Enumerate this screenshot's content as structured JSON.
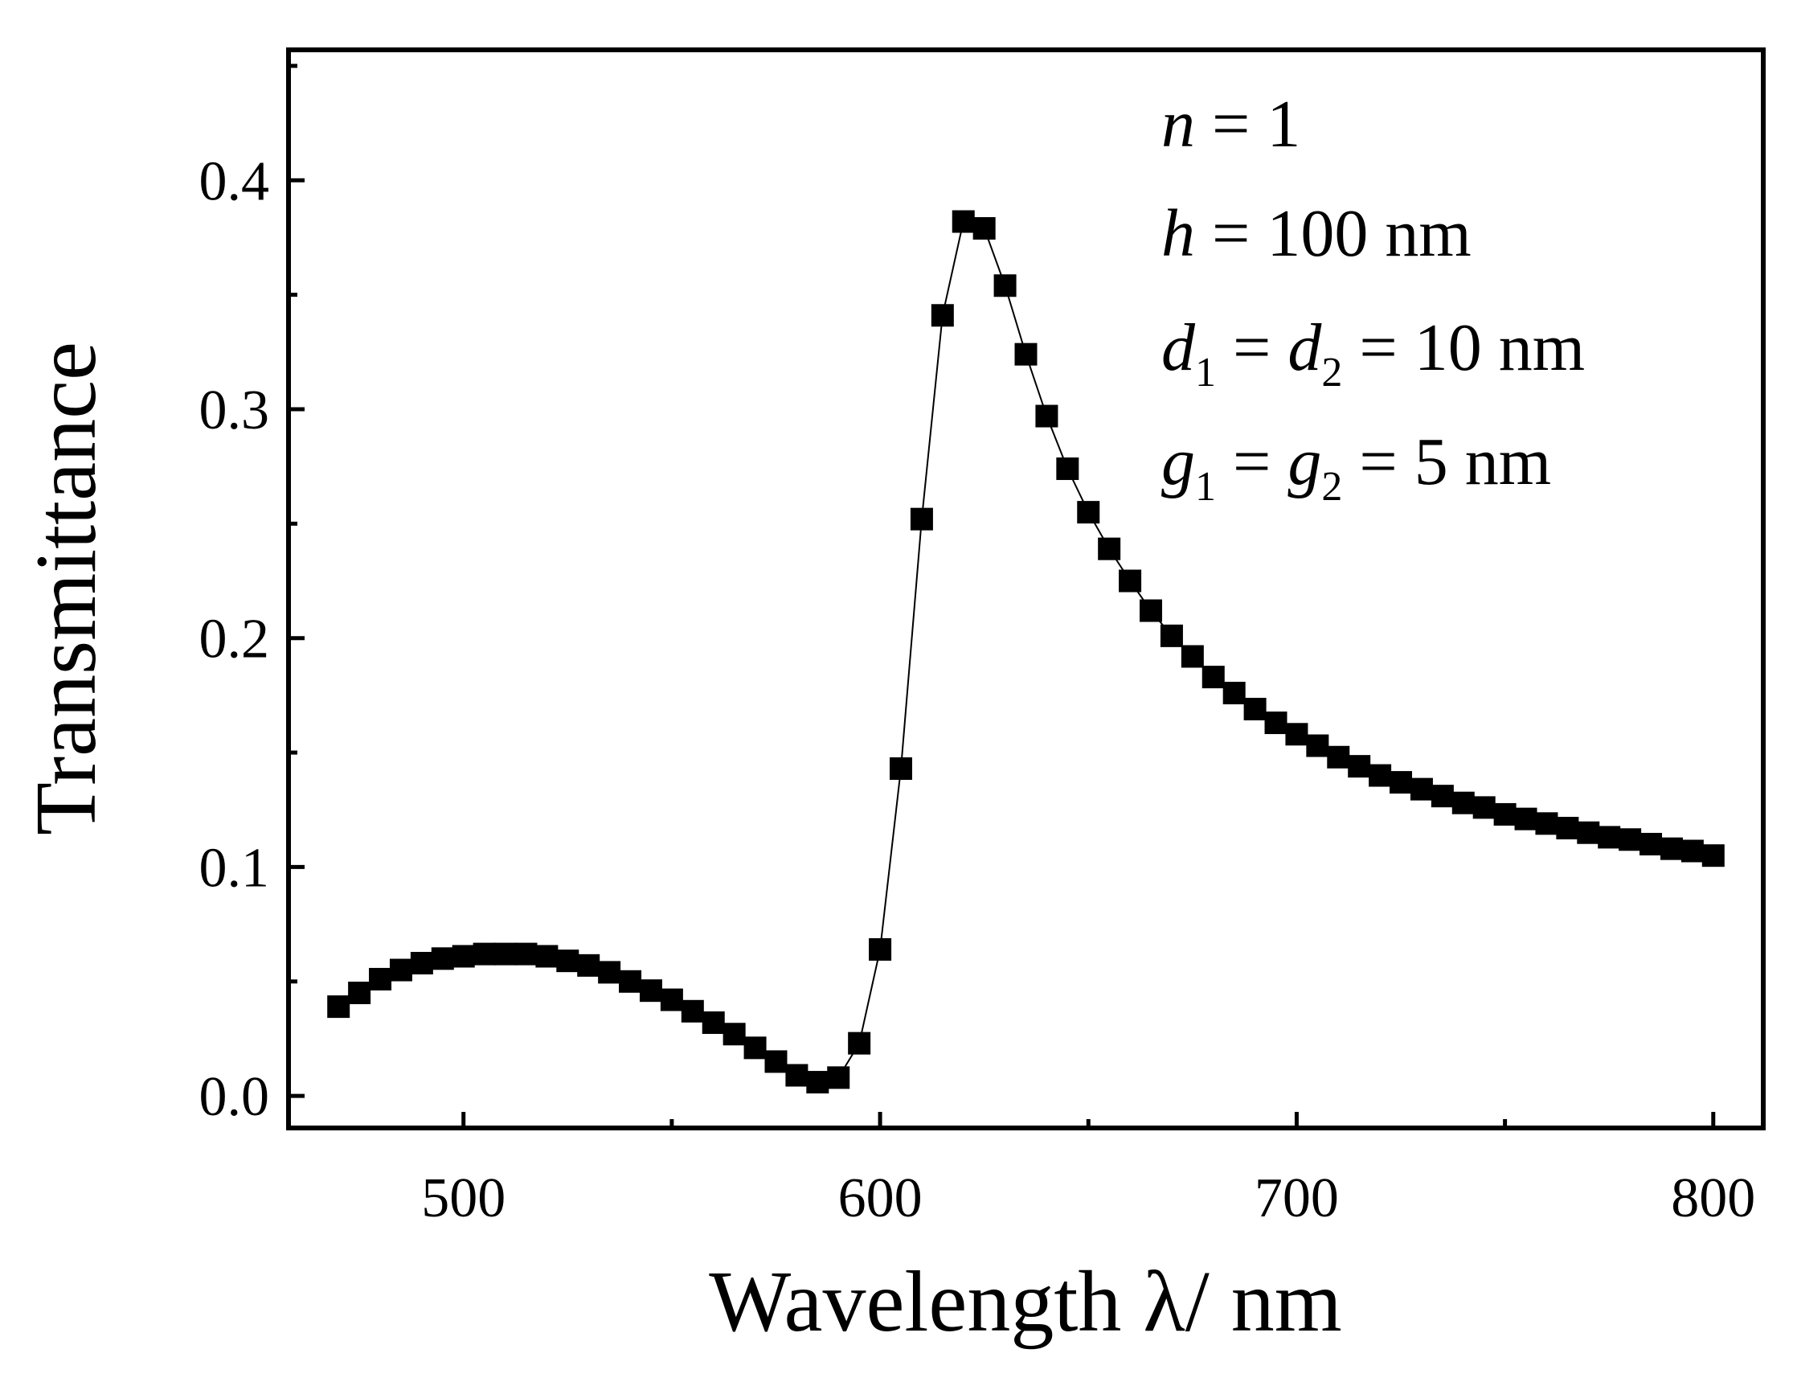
{
  "chart_data": {
    "type": "scatter",
    "title": "",
    "xlabel": "Wavelength λ/ nm",
    "ylabel": "Transmittance",
    "xlim": [
      458,
      812
    ],
    "ylim": [
      -0.014,
      0.457
    ],
    "xticks": [
      500,
      600,
      700,
      800
    ],
    "xtick_labels": [
      "500",
      "600",
      "700",
      "800"
    ],
    "yticks": [
      0.0,
      0.1,
      0.2,
      0.3,
      0.4
    ],
    "ytick_labels": [
      "0.0",
      "0.1",
      "0.2",
      "0.3",
      "0.4"
    ],
    "grid": false,
    "legend": "none",
    "annotations": [
      {
        "var": "n",
        "rest": " = 1"
      },
      {
        "var": "h",
        "rest": " = 100 nm"
      },
      {
        "var": "d",
        "sub": "1",
        "mid": " = ",
        "var2": "d",
        "sub2": "2",
        "rest": " = 10 nm"
      },
      {
        "var": "g",
        "sub": "1",
        "mid": " = ",
        "var2": "g",
        "sub2": "2",
        "rest": " = 5 nm"
      }
    ],
    "series": [
      {
        "name": "Transmittance",
        "marker": "square",
        "line": "thin",
        "x": [
          470,
          475,
          480,
          485,
          490,
          495,
          500,
          505,
          510,
          515,
          520,
          525,
          530,
          535,
          540,
          545,
          550,
          555,
          560,
          565,
          570,
          575,
          580,
          585,
          590,
          595,
          600,
          605,
          610,
          615,
          620,
          625,
          630,
          635,
          640,
          645,
          650,
          655,
          660,
          665,
          670,
          675,
          680,
          685,
          690,
          695,
          700,
          705,
          710,
          715,
          720,
          725,
          730,
          735,
          740,
          745,
          750,
          755,
          760,
          765,
          770,
          775,
          780,
          785,
          790,
          795,
          800
        ],
        "y": [
          0.039,
          0.045,
          0.051,
          0.055,
          0.058,
          0.06,
          0.061,
          0.062,
          0.062,
          0.062,
          0.061,
          0.059,
          0.057,
          0.054,
          0.05,
          0.046,
          0.042,
          0.037,
          0.032,
          0.027,
          0.021,
          0.015,
          0.009,
          0.006,
          0.008,
          0.023,
          0.064,
          0.143,
          0.252,
          0.341,
          0.382,
          0.379,
          0.354,
          0.324,
          0.297,
          0.274,
          0.255,
          0.239,
          0.225,
          0.212,
          0.201,
          0.192,
          0.183,
          0.176,
          0.169,
          0.163,
          0.158,
          0.153,
          0.148,
          0.144,
          0.14,
          0.137,
          0.134,
          0.131,
          0.128,
          0.126,
          0.123,
          0.121,
          0.119,
          0.117,
          0.115,
          0.113,
          0.112,
          0.11,
          0.108,
          0.107,
          0.105
        ]
      }
    ]
  }
}
